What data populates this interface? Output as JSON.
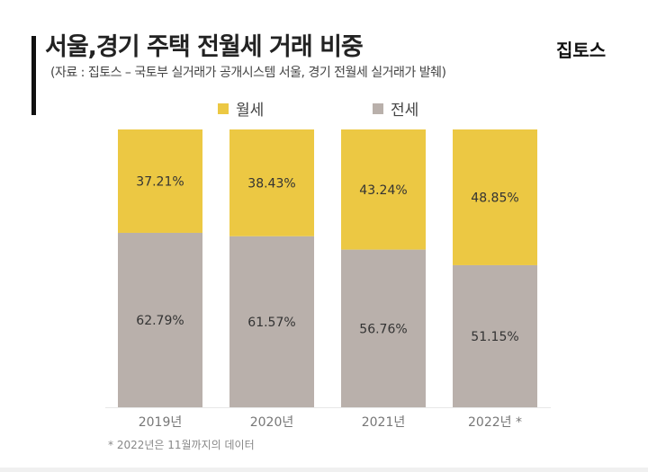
{
  "header": {
    "title": "서울,경기 주택 전월세 거래 비중",
    "subtitle": "(자료 : 집토스 – 국토부 실거래가 공개시스템 서울, 경기 전월세 실거래가 발췌)",
    "logo": "집토스"
  },
  "footnote": "* 2022년은 11월까지의 데이터",
  "chart_data": {
    "type": "bar",
    "stacked": true,
    "unit": "%",
    "title": "서울,경기 주택 전월세 거래 비중",
    "categories": [
      "2019년",
      "2020년",
      "2021년",
      "2022년 *"
    ],
    "series": [
      {
        "name": "전세",
        "color": "#b9b0ab",
        "values": [
          62.79,
          61.57,
          56.76,
          51.15
        ],
        "labels": [
          "62.79%",
          "61.57%",
          "56.76%",
          "51.15%"
        ]
      },
      {
        "name": "월세",
        "color": "#ecc843",
        "values": [
          37.21,
          38.43,
          43.24,
          48.85
        ],
        "labels": [
          "37.21%",
          "38.43%",
          "43.24%",
          "48.85%"
        ]
      }
    ],
    "ylim": [
      0,
      100
    ],
    "legend": "top",
    "grid": false
  }
}
